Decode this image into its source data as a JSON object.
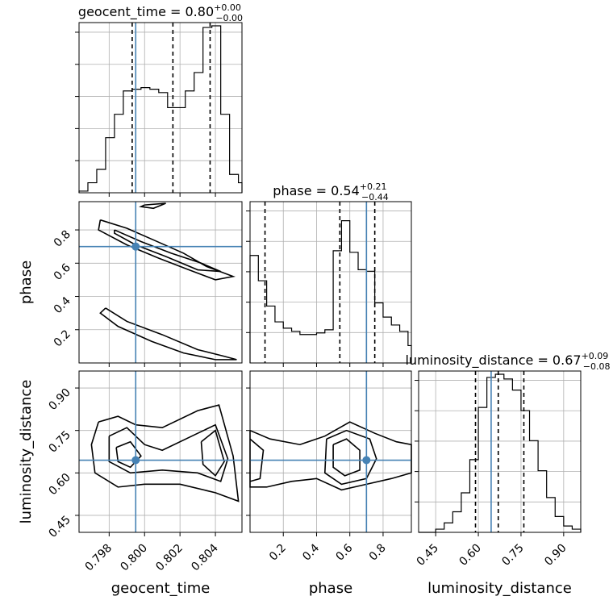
{
  "chart_data": {
    "type": "corner",
    "parameters": [
      {
        "name": "geocent_time",
        "xlabel": "geocent_time",
        "title": {
          "main": "geocent_time = 0.80",
          "sup": "+0.00",
          "sub": "−0.00"
        },
        "range": [
          0.7963,
          0.8055
        ],
        "ticks": [
          "0.798",
          "0.800",
          "0.802",
          "0.804"
        ],
        "truth": 0.7995,
        "quantiles": [
          0.7993,
          0.8016,
          0.8037
        ],
        "hist_bins": [
          0.7963,
          0.7968,
          0.7973,
          0.7978,
          0.7983,
          0.7988,
          0.7993,
          0.7998,
          0.8003,
          0.8008,
          0.8013,
          0.8018,
          0.8023,
          0.8028,
          0.8033,
          0.8038,
          0.8043,
          0.8048,
          0.8053,
          0.8055
        ],
        "hist_counts": [
          0.01,
          0.06,
          0.14,
          0.33,
          0.47,
          0.61,
          0.62,
          0.63,
          0.62,
          0.6,
          0.51,
          0.51,
          0.61,
          0.72,
          0.99,
          1.0,
          0.47,
          0.11,
          0.06
        ]
      },
      {
        "name": "phase",
        "xlabel": "phase",
        "ylabel": "phase",
        "title": {
          "main": "phase = 0.54",
          "sup": "+0.21",
          "sub": "−0.44"
        },
        "range": [
          0.0,
          0.97
        ],
        "ticks": [
          "0.2",
          "0.4",
          "0.6",
          "0.8"
        ],
        "truth": 0.7,
        "quantiles": [
          0.09,
          0.54,
          0.75
        ],
        "hist_bins": [
          0.0,
          0.05,
          0.1,
          0.15,
          0.2,
          0.25,
          0.3,
          0.35,
          0.4,
          0.45,
          0.5,
          0.55,
          0.6,
          0.65,
          0.7,
          0.75,
          0.8,
          0.85,
          0.9,
          0.95,
          0.97
        ],
        "hist_counts": [
          0.68,
          0.52,
          0.36,
          0.26,
          0.22,
          0.2,
          0.18,
          0.18,
          0.19,
          0.21,
          0.71,
          0.9,
          0.7,
          0.59,
          0.58,
          0.38,
          0.29,
          0.24,
          0.2,
          0.11
        ]
      },
      {
        "name": "luminosity_distance",
        "xlabel": "luminosity_distance",
        "ylabel": "luminosity_distance",
        "title": {
          "main": "luminosity_distance = 0.67",
          "sup": "+0.09",
          "sub": "−0.08"
        },
        "range": [
          0.39,
          0.96
        ],
        "ticks": [
          "0.45",
          "0.60",
          "0.75",
          "0.90"
        ],
        "truth": 0.645,
        "quantiles": [
          0.59,
          0.67,
          0.76
        ],
        "hist_bins": [
          0.39,
          0.42,
          0.45,
          0.48,
          0.51,
          0.54,
          0.57,
          0.6,
          0.63,
          0.66,
          0.69,
          0.72,
          0.75,
          0.78,
          0.81,
          0.84,
          0.87,
          0.9,
          0.93,
          0.96
        ],
        "hist_counts": [
          0.0,
          0.0,
          0.02,
          0.06,
          0.13,
          0.25,
          0.46,
          0.79,
          0.98,
          1.0,
          0.97,
          0.9,
          0.77,
          0.58,
          0.39,
          0.22,
          0.1,
          0.04,
          0.02
        ]
      }
    ],
    "hist_ticks_count": 5,
    "truth_color": "#4682b4",
    "contours": {
      "phase_vs_geocent_time": [
        [
          [
            0.7975,
            0.86
          ],
          [
            0.799,
            0.81
          ],
          [
            0.8005,
            0.74
          ],
          [
            0.8022,
            0.66
          ],
          [
            0.8035,
            0.58
          ],
          [
            0.8045,
            0.54
          ],
          [
            0.805,
            0.52
          ],
          [
            0.804,
            0.5
          ],
          [
            0.8025,
            0.56
          ],
          [
            0.8008,
            0.63
          ],
          [
            0.799,
            0.71
          ],
          [
            0.7974,
            0.8
          ],
          [
            0.7975,
            0.86
          ]
        ],
        [
          [
            0.7983,
            0.8
          ],
          [
            0.7998,
            0.73
          ],
          [
            0.8015,
            0.66
          ],
          [
            0.8032,
            0.6
          ],
          [
            0.8043,
            0.55
          ],
          [
            0.803,
            0.56
          ],
          [
            0.8012,
            0.64
          ],
          [
            0.7995,
            0.71
          ],
          [
            0.7983,
            0.78
          ],
          [
            0.7983,
            0.8
          ]
        ],
        [
          [
            0.7978,
            0.33
          ],
          [
            0.799,
            0.25
          ],
          [
            0.801,
            0.17
          ],
          [
            0.803,
            0.08
          ],
          [
            0.8045,
            0.04
          ],
          [
            0.8052,
            0.02
          ],
          [
            0.804,
            0.02
          ],
          [
            0.8022,
            0.06
          ],
          [
            0.8004,
            0.13
          ],
          [
            0.7985,
            0.22
          ],
          [
            0.7975,
            0.3
          ],
          [
            0.7978,
            0.33
          ]
        ],
        [
          [
            0.8,
            0.95
          ],
          [
            0.8012,
            0.96
          ],
          [
            0.8005,
            0.93
          ],
          [
            0.7998,
            0.94
          ],
          [
            0.8,
            0.95
          ]
        ]
      ],
      "luminosity_distance_vs_geocent_time": [
        [
          [
            0.7974,
            0.78
          ],
          [
            0.7985,
            0.8
          ],
          [
            0.7995,
            0.77
          ],
          [
            0.801,
            0.76
          ],
          [
            0.803,
            0.82
          ],
          [
            0.8042,
            0.84
          ],
          [
            0.805,
            0.66
          ],
          [
            0.8053,
            0.5
          ],
          [
            0.804,
            0.53
          ],
          [
            0.802,
            0.56
          ],
          [
            0.8,
            0.56
          ],
          [
            0.7985,
            0.55
          ],
          [
            0.7972,
            0.6
          ],
          [
            0.797,
            0.7
          ],
          [
            0.7974,
            0.78
          ]
        ],
        [
          [
            0.798,
            0.73
          ],
          [
            0.799,
            0.76
          ],
          [
            0.8,
            0.7
          ],
          [
            0.801,
            0.68
          ],
          [
            0.803,
            0.74
          ],
          [
            0.804,
            0.77
          ],
          [
            0.8047,
            0.65
          ],
          [
            0.8043,
            0.57
          ],
          [
            0.803,
            0.6
          ],
          [
            0.801,
            0.61
          ],
          [
            0.7992,
            0.6
          ],
          [
            0.798,
            0.64
          ],
          [
            0.798,
            0.73
          ]
        ],
        [
          [
            0.7984,
            0.69
          ],
          [
            0.7992,
            0.71
          ],
          [
            0.7998,
            0.66
          ],
          [
            0.7992,
            0.62
          ],
          [
            0.7985,
            0.64
          ],
          [
            0.7984,
            0.69
          ]
        ],
        [
          [
            0.8032,
            0.71
          ],
          [
            0.804,
            0.75
          ],
          [
            0.8045,
            0.64
          ],
          [
            0.804,
            0.59
          ],
          [
            0.8033,
            0.63
          ],
          [
            0.8032,
            0.71
          ]
        ]
      ],
      "luminosity_distance_vs_phase": [
        [
          [
            0.0,
            0.75
          ],
          [
            0.12,
            0.72
          ],
          [
            0.3,
            0.7
          ],
          [
            0.45,
            0.73
          ],
          [
            0.6,
            0.78
          ],
          [
            0.75,
            0.74
          ],
          [
            0.88,
            0.71
          ],
          [
            0.97,
            0.7
          ],
          [
            0.97,
            0.6
          ],
          [
            0.85,
            0.58
          ],
          [
            0.7,
            0.56
          ],
          [
            0.55,
            0.54
          ],
          [
            0.4,
            0.58
          ],
          [
            0.25,
            0.57
          ],
          [
            0.1,
            0.55
          ],
          [
            0.0,
            0.55
          ],
          [
            0.0,
            0.75
          ]
        ],
        [
          [
            0.0,
            0.72
          ],
          [
            0.08,
            0.68
          ],
          [
            0.06,
            0.58
          ],
          [
            0.0,
            0.57
          ]
        ],
        [
          [
            0.46,
            0.72
          ],
          [
            0.58,
            0.75
          ],
          [
            0.72,
            0.72
          ],
          [
            0.76,
            0.65
          ],
          [
            0.7,
            0.58
          ],
          [
            0.55,
            0.56
          ],
          [
            0.45,
            0.6
          ],
          [
            0.46,
            0.72
          ]
        ],
        [
          [
            0.5,
            0.7
          ],
          [
            0.58,
            0.72
          ],
          [
            0.66,
            0.68
          ],
          [
            0.66,
            0.61
          ],
          [
            0.57,
            0.59
          ],
          [
            0.5,
            0.62
          ],
          [
            0.5,
            0.7
          ]
        ]
      ]
    }
  }
}
